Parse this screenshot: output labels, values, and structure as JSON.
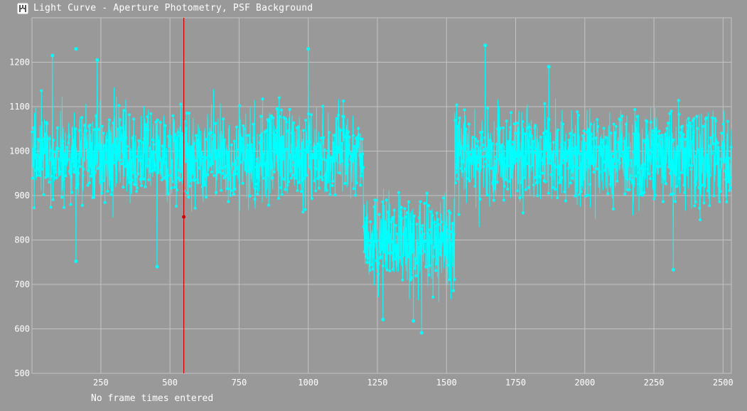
{
  "window": {
    "title": "Light Curve - Aperture Photometry, PSF Background",
    "icon": "light-curve-app-icon"
  },
  "status": {
    "message": "No frame times entered"
  },
  "colors": {
    "background": "#999999",
    "grid": "#c4c4c4",
    "series": "#00ffff",
    "cursor": "#cc0000",
    "text": "#ffffff"
  },
  "chart_data": {
    "type": "line",
    "title": "",
    "xlabel": "",
    "ylabel": "",
    "xlim": [
      1,
      2530
    ],
    "ylim": [
      500,
      1300
    ],
    "x_ticks": [
      250,
      500,
      750,
      1000,
      1250,
      1500,
      1750,
      2000,
      2250,
      2500
    ],
    "y_ticks": [
      500,
      600,
      700,
      800,
      900,
      1000,
      1100,
      1200
    ],
    "grid": true,
    "legend": "none",
    "cursor": {
      "frame": 550,
      "value": 852
    },
    "series": [
      {
        "segments": [
          {
            "from_frame": 1,
            "to_frame": 1200,
            "mean": 990,
            "spread": 90
          },
          {
            "from_frame": 1200,
            "to_frame": 1530,
            "mean": 795,
            "spread": 85
          },
          {
            "from_frame": 1530,
            "to_frame": 2530,
            "mean": 985,
            "spread": 90
          }
        ],
        "peaks": [
          {
            "frame": 75,
            "value": 1215
          },
          {
            "frame": 160,
            "value": 1230
          },
          {
            "frame": 237,
            "value": 1205
          },
          {
            "frame": 1000,
            "value": 1230
          },
          {
            "frame": 1640,
            "value": 1238
          },
          {
            "frame": 1870,
            "value": 1190
          }
        ],
        "troughs": [
          {
            "frame": 160,
            "value": 752
          },
          {
            "frame": 453,
            "value": 740
          },
          {
            "frame": 1270,
            "value": 621
          },
          {
            "frame": 1380,
            "value": 618
          },
          {
            "frame": 1410,
            "value": 591
          },
          {
            "frame": 2320,
            "value": 733
          }
        ]
      }
    ]
  }
}
